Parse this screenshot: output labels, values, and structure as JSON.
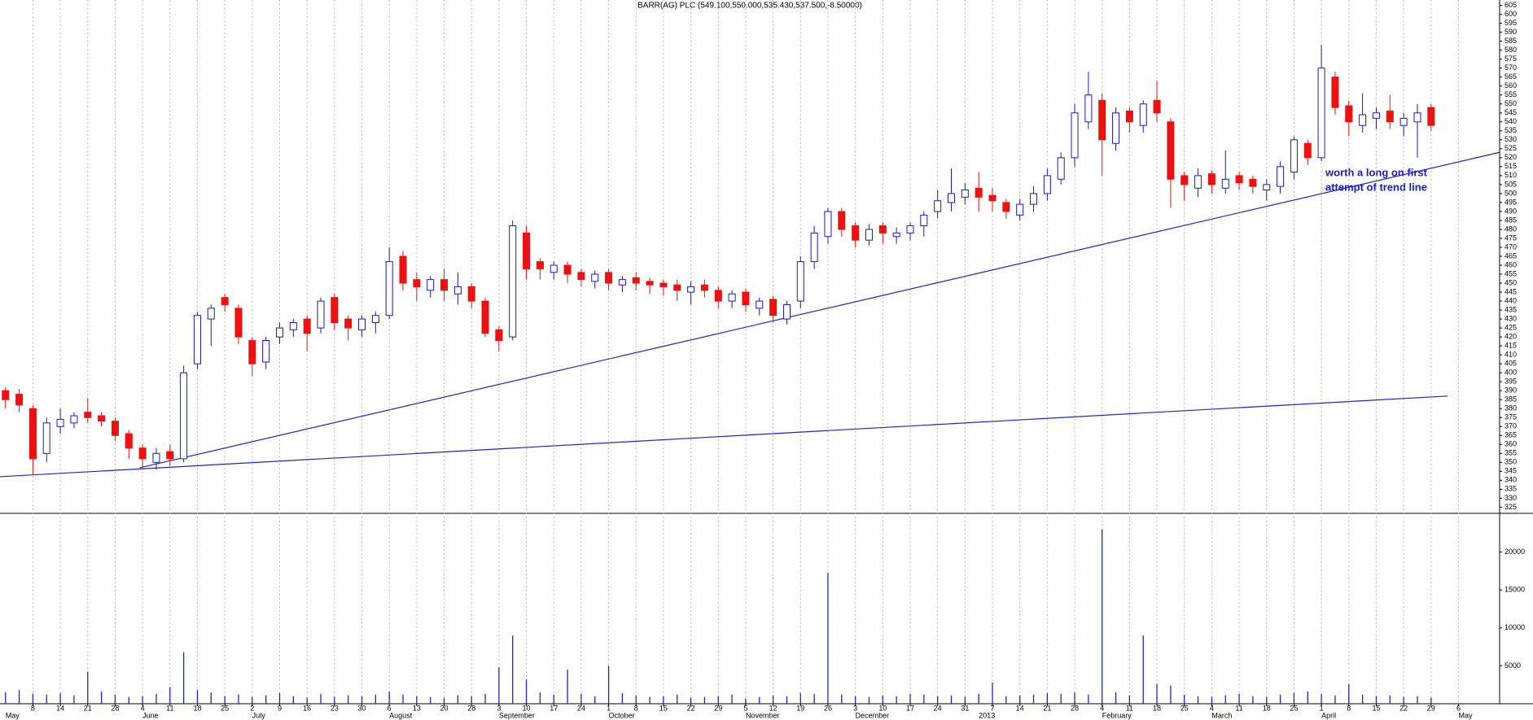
{
  "chart_data": {
    "type": "candlestick",
    "title": "BARR(AG) PLC (549.100,550.000,535.430,537.500,-8.50000)",
    "annotation": [
      "worth a long on first",
      "attempt of trend line"
    ],
    "x": [
      0,
      0.5,
      1,
      1.5,
      2,
      2.5,
      3,
      3.5,
      4,
      4.5,
      5,
      5.5,
      6,
      6.5,
      7,
      7.5,
      8,
      8.5,
      9,
      9.5,
      10,
      10.5,
      11,
      11.5,
      12,
      12.5,
      13,
      13.5,
      14,
      14.5,
      15,
      15.5,
      16,
      16.5,
      17,
      17.5,
      18,
      18.5,
      19,
      19.5,
      20,
      20.5,
      21,
      21.5,
      22,
      22.5,
      23,
      23.5,
      24,
      24.5,
      25,
      25.5,
      26,
      26.5,
      27,
      27.5,
      28,
      28.5,
      29,
      29.5,
      30,
      30.5,
      31,
      31.5,
      32,
      32.5,
      33,
      33.5,
      34,
      34.5,
      35,
      35.5,
      36,
      36.5,
      37,
      37.5,
      38,
      38.5,
      39,
      39.5,
      40,
      40.5,
      41,
      41.5,
      42,
      42.5,
      43,
      43.5,
      44,
      44.5,
      45,
      45.5,
      46,
      46.5,
      47,
      47.5,
      48,
      48.5,
      49,
      49.5,
      50,
      50.5,
      51,
      51.5,
      52
    ],
    "open": [
      390,
      388,
      380,
      355,
      370,
      372,
      378,
      376,
      373,
      366,
      358,
      350,
      356,
      352,
      405,
      430,
      442,
      436,
      418,
      406,
      420,
      424,
      430,
      425,
      442,
      430,
      424,
      428,
      432,
      465,
      452,
      446,
      452,
      444,
      448,
      440,
      424,
      420,
      478,
      462,
      456,
      460,
      456,
      451,
      456,
      449,
      453,
      451,
      450,
      449,
      445,
      449,
      446,
      440,
      445,
      436,
      441,
      430,
      440,
      462,
      476,
      490,
      482,
      474,
      482,
      476,
      478,
      482,
      490,
      495,
      498,
      503,
      499,
      495,
      488,
      494,
      500,
      508,
      520,
      540,
      552,
      528,
      546,
      538,
      552,
      540,
      510,
      503,
      511,
      503,
      510,
      508,
      502,
      504,
      512,
      528,
      520,
      565,
      549,
      538,
      542,
      546,
      538,
      540,
      548
    ],
    "high": [
      392,
      391,
      382,
      375,
      380,
      378,
      386,
      378,
      375,
      368,
      360,
      358,
      360,
      404,
      434,
      438,
      444,
      438,
      420,
      420,
      428,
      430,
      432,
      442,
      444,
      432,
      432,
      434,
      470,
      468,
      456,
      454,
      458,
      456,
      450,
      442,
      426,
      485,
      482,
      464,
      462,
      462,
      458,
      457,
      458,
      454,
      456,
      453,
      452,
      452,
      451,
      452,
      448,
      446,
      447,
      442,
      443,
      440,
      465,
      482,
      492,
      492,
      484,
      483,
      484,
      481,
      484,
      490,
      502,
      514,
      506,
      512,
      503,
      497,
      497,
      504,
      514,
      523,
      550,
      568,
      556,
      548,
      548,
      552,
      563,
      542,
      512,
      514,
      513,
      524,
      512,
      510,
      508,
      518,
      532,
      530,
      583,
      568,
      552,
      556,
      548,
      555,
      545,
      550,
      550
    ],
    "low": [
      380,
      378,
      343,
      350,
      366,
      369,
      372,
      370,
      362,
      352,
      346,
      346,
      348,
      350,
      402,
      415,
      434,
      416,
      398,
      402,
      416,
      420,
      412,
      422,
      424,
      418,
      420,
      422,
      430,
      446,
      440,
      442,
      440,
      438,
      436,
      420,
      412,
      418,
      452,
      452,
      452,
      450,
      448,
      447,
      446,
      445,
      446,
      444,
      443,
      440,
      438,
      442,
      436,
      436,
      434,
      432,
      428,
      427,
      436,
      458,
      472,
      476,
      470,
      471,
      472,
      472,
      474,
      476,
      486,
      490,
      494,
      490,
      490,
      486,
      485,
      490,
      496,
      505,
      515,
      536,
      510,
      524,
      534,
      534,
      540,
      492,
      496,
      498,
      500,
      500,
      502,
      500,
      496,
      500,
      508,
      516,
      518,
      544,
      532,
      534,
      536,
      536,
      532,
      520,
      535
    ],
    "close": [
      385,
      382,
      352,
      372,
      374,
      376,
      375,
      373,
      365,
      358,
      352,
      355,
      352,
      400,
      432,
      436,
      438,
      420,
      405,
      418,
      425,
      428,
      422,
      440,
      428,
      425,
      430,
      432,
      462,
      450,
      448,
      452,
      446,
      448,
      440,
      422,
      418,
      482,
      458,
      458,
      460,
      455,
      452,
      455,
      450,
      452,
      450,
      449,
      448,
      446,
      448,
      446,
      440,
      444,
      438,
      440,
      432,
      438,
      462,
      478,
      490,
      480,
      474,
      480,
      478,
      478,
      482,
      488,
      496,
      500,
      502,
      498,
      496,
      490,
      494,
      500,
      510,
      520,
      545,
      555,
      530,
      545,
      540,
      550,
      545,
      508,
      505,
      510,
      505,
      508,
      506,
      504,
      505,
      515,
      530,
      520,
      570,
      548,
      540,
      544,
      545,
      540,
      542,
      545,
      538
    ],
    "volume": [
      1500,
      1800,
      1300,
      1200,
      1400,
      1100,
      4200,
      1600,
      1200,
      900,
      1000,
      1300,
      2200,
      6800,
      1800,
      1500,
      1000,
      1200,
      900,
      1100,
      1400,
      1000,
      800,
      1300,
      900,
      1100,
      1000,
      1200,
      1600,
      1200,
      1000,
      900,
      800,
      1100,
      1000,
      1300,
      4800,
      9000,
      3200,
      1500,
      1200,
      4500,
      1300,
      1000,
      5000,
      1400,
      1100,
      900,
      1000,
      1200,
      800,
      900,
      1000,
      1200,
      700,
      900,
      1100,
      1000,
      1400,
      1300,
      17300,
      1200,
      1000,
      900,
      1100,
      1000,
      1300,
      1200,
      1000,
      1100,
      900,
      1300,
      2800,
      1000,
      1100,
      1200,
      1400,
      1300,
      1500,
      1200,
      23000,
      1500,
      1100,
      9000,
      2600,
      2400,
      1200,
      1000,
      900,
      1100,
      1300,
      1000,
      900,
      1200,
      1400,
      1600,
      1300,
      1100,
      2600,
      1200,
      1000,
      1100,
      900,
      1000,
      800
    ],
    "up_color": "#1a1acc",
    "down_color": "#ee1111",
    "line_color": "#2222cc",
    "trend_lines": [
      {
        "x": [
          4.9,
          54.5
        ],
        "y": [
          347,
          523
        ]
      },
      {
        "x": [
          -0.2,
          52.6
        ],
        "y": [
          342,
          387
        ]
      }
    ],
    "xlim": [
      -0.2,
      54.5
    ],
    "ylim": [
      322,
      608
    ],
    "yticks": [
      325,
      330,
      335,
      340,
      345,
      350,
      355,
      360,
      365,
      370,
      375,
      380,
      385,
      390,
      395,
      400,
      405,
      410,
      415,
      420,
      425,
      430,
      435,
      440,
      445,
      450,
      455,
      460,
      465,
      470,
      475,
      480,
      485,
      490,
      495,
      500,
      505,
      510,
      515,
      520,
      525,
      530,
      535,
      540,
      545,
      550,
      555,
      560,
      565,
      570,
      575,
      580,
      585,
      590,
      595,
      600,
      605
    ],
    "vlim": [
      0,
      25000
    ],
    "vticks": [
      5000,
      10000,
      15000,
      20000
    ],
    "xticks": [
      {
        "value": 1,
        "label": "8"
      },
      {
        "value": 2,
        "label": "14"
      },
      {
        "value": 3,
        "label": "21"
      },
      {
        "value": 4,
        "label": "28"
      },
      {
        "value": 5,
        "label": "4"
      },
      {
        "value": 6,
        "label": "11"
      },
      {
        "value": 7,
        "label": "18"
      },
      {
        "value": 8,
        "label": "25"
      },
      {
        "value": 9,
        "label": "2"
      },
      {
        "value": 10,
        "label": "9"
      },
      {
        "value": 11,
        "label": "16"
      },
      {
        "value": 12,
        "label": "23"
      },
      {
        "value": 13,
        "label": "30"
      },
      {
        "value": 14,
        "label": "6"
      },
      {
        "value": 15,
        "label": "13"
      },
      {
        "value": 16,
        "label": "20"
      },
      {
        "value": 17,
        "label": "28"
      },
      {
        "value": 18,
        "label": "3"
      },
      {
        "value": 19,
        "label": "10"
      },
      {
        "value": 20,
        "label": "17"
      },
      {
        "value": 21,
        "label": "24"
      },
      {
        "value": 22,
        "label": "1"
      },
      {
        "value": 23,
        "label": "8"
      },
      {
        "value": 24,
        "label": "15"
      },
      {
        "value": 25,
        "label": "22"
      },
      {
        "value": 26,
        "label": "29"
      },
      {
        "value": 27,
        "label": "5"
      },
      {
        "value": 28,
        "label": "12"
      },
      {
        "value": 29,
        "label": "19"
      },
      {
        "value": 30,
        "label": "26"
      },
      {
        "value": 31,
        "label": "3"
      },
      {
        "value": 32,
        "label": "10"
      },
      {
        "value": 33,
        "label": "17"
      },
      {
        "value": 34,
        "label": "24"
      },
      {
        "value": 35,
        "label": "31"
      },
      {
        "value": 36,
        "label": "7"
      },
      {
        "value": 37,
        "label": "14"
      },
      {
        "value": 38,
        "label": "21"
      },
      {
        "value": 39,
        "label": "28"
      },
      {
        "value": 40,
        "label": "4"
      },
      {
        "value": 41,
        "label": "11"
      },
      {
        "value": 42,
        "label": "18"
      },
      {
        "value": 43,
        "label": "25"
      },
      {
        "value": 44,
        "label": "4"
      },
      {
        "value": 45,
        "label": "11"
      },
      {
        "value": 46,
        "label": "18"
      },
      {
        "value": 47,
        "label": "25"
      },
      {
        "value": 48,
        "label": "1"
      },
      {
        "value": 49,
        "label": "8"
      },
      {
        "value": 50,
        "label": "15"
      },
      {
        "value": 51,
        "label": "22"
      },
      {
        "value": 52,
        "label": "29"
      },
      {
        "value": 53,
        "label": "6"
      }
    ],
    "month_ticks": [
      {
        "value": 0,
        "label": "May"
      },
      {
        "value": 5,
        "label": "June"
      },
      {
        "value": 9,
        "label": "July"
      },
      {
        "value": 14,
        "label": "August"
      },
      {
        "value": 18,
        "label": "September"
      },
      {
        "value": 22,
        "label": "October"
      },
      {
        "value": 27,
        "label": "November"
      },
      {
        "value": 31,
        "label": "December"
      },
      {
        "value": 35.5,
        "label": "2013"
      },
      {
        "value": 40,
        "label": "February"
      },
      {
        "value": 44,
        "label": "March"
      },
      {
        "value": 48,
        "label": "April"
      },
      {
        "value": 53,
        "label": "May"
      }
    ],
    "grid": true
  }
}
